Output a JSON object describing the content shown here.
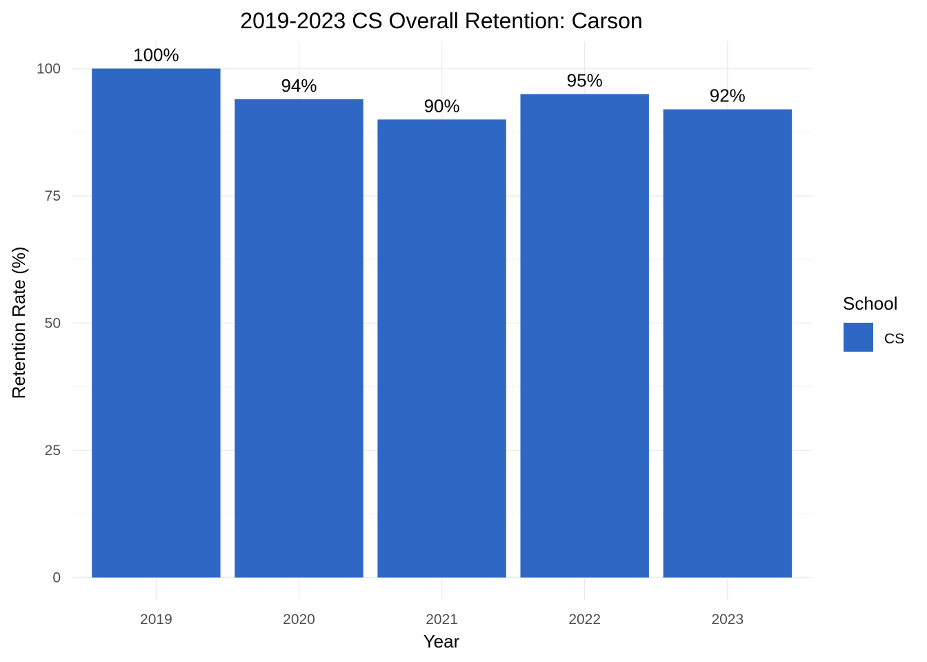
{
  "chart_data": {
    "type": "bar",
    "title": "2019-2023 CS Overall Retention: Carson",
    "xlabel": "Year",
    "ylabel": "Retention Rate (%)",
    "categories": [
      "2019",
      "2020",
      "2021",
      "2022",
      "2023"
    ],
    "series": [
      {
        "name": "CS",
        "values": [
          100,
          94,
          90,
          95,
          92
        ],
        "labels": [
          "100%",
          "94%",
          "90%",
          "95%",
          "92%"
        ],
        "color": "#2e68c4"
      }
    ],
    "ylim": [
      0,
      100
    ],
    "y_ticks": [
      0,
      25,
      50,
      75,
      100
    ],
    "y_tick_labels": [
      "0",
      "25",
      "50",
      "75",
      "100"
    ],
    "grid": true,
    "legend": {
      "title": "School",
      "placement": "right"
    }
  }
}
